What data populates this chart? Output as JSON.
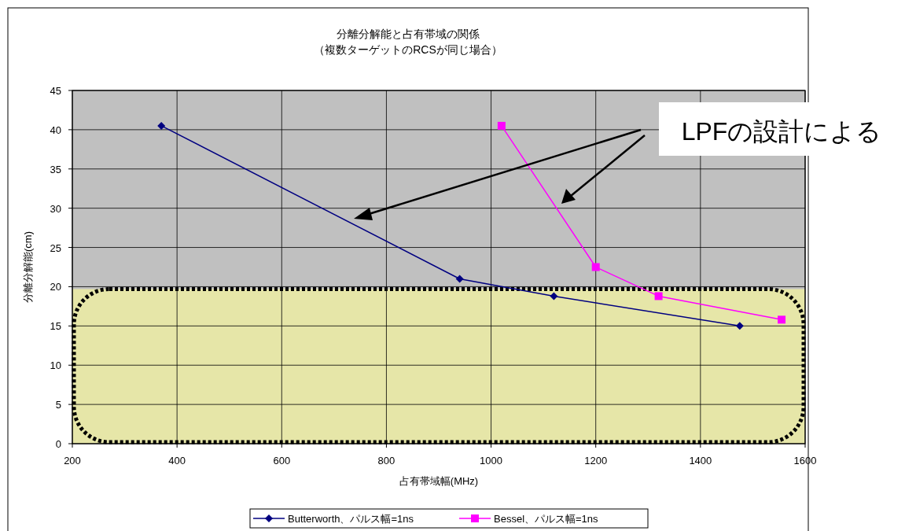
{
  "chart_data": {
    "type": "line",
    "title": "分離分解能と占有帯域の関係",
    "subtitle": "（複数ターゲットのRCSが同じ場合）",
    "xlabel": "占有帯域幅(MHz)",
    "ylabel": "分離分解能(cm)",
    "xlim": [
      200,
      1600
    ],
    "xticks": [
      200,
      400,
      600,
      800,
      1000,
      1200,
      1400,
      1600
    ],
    "ylim": [
      0,
      45
    ],
    "yticks": [
      0,
      5,
      10,
      15,
      20,
      25,
      30,
      35,
      40,
      45
    ],
    "grid": true,
    "legend": "bottom",
    "series": [
      {
        "name": "Butterworth、パルス幅=1ns",
        "color": "#000080",
        "marker": "diamond",
        "x": [
          370,
          940,
          1120,
          1475
        ],
        "values": [
          40.5,
          21.0,
          18.8,
          15.0
        ]
      },
      {
        "name": "Bessel、パルス幅=1ns",
        "color": "#ff00ff",
        "marker": "square",
        "x": [
          1020,
          1200,
          1320,
          1555
        ],
        "values": [
          40.5,
          22.5,
          18.8,
          15.8
        ]
      }
    ],
    "bands": [
      {
        "axis": "y",
        "from": 0,
        "to": 19.7,
        "color": "#e6e6a8"
      }
    ],
    "annotations": [
      "LPFの設計による"
    ]
  }
}
